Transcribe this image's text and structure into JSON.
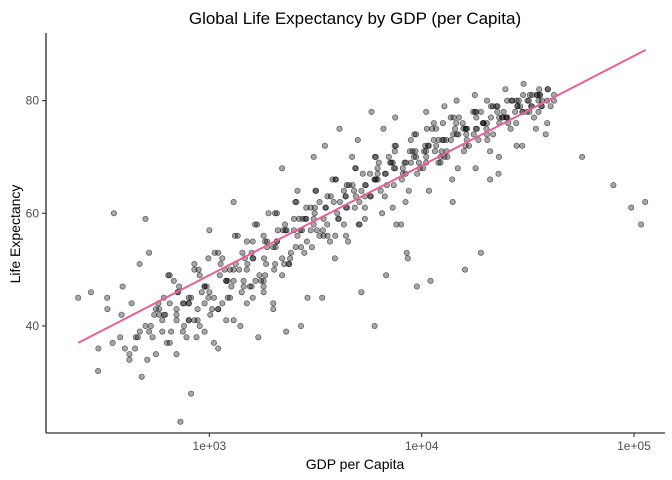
{
  "chart_data": {
    "type": "scatter",
    "title": "Global Life Expectancy by GDP (per Capita)",
    "xlabel": "GDP per Capita",
    "ylabel": "Life Expectancy",
    "x_scale": "log10",
    "xlim": [
      170,
      140000
    ],
    "ylim": [
      21,
      92
    ],
    "x_ticks": [
      1000,
      10000,
      100000
    ],
    "x_tick_labels": [
      "1e+03",
      "1e+04",
      "1e+05"
    ],
    "y_ticks": [
      40,
      60,
      80
    ],
    "y_tick_labels": [
      "40",
      "60",
      "80"
    ],
    "grid": false,
    "legend": "none",
    "colors": {
      "points_fill": "#000000",
      "points_opacity": 0.35,
      "trend_line": "#e8609a"
    },
    "trend_line": {
      "type": "linear on log10(x)",
      "x": [
        241,
        113523
      ],
      "y": [
        37.0,
        89.0
      ]
    },
    "series": [
      {
        "x": [
          241,
          277,
          299,
          331,
          355,
          386,
          420,
          447,
          469,
          500,
          540,
          575,
          620,
          650,
          700,
          730,
          760,
          820,
          870,
          880,
          990,
          1000,
          1100,
          1200,
          1250,
          1300,
          1400,
          1500,
          1600,
          1700,
          1800,
          1900,
          2000,
          2100,
          2200,
          2400,
          2600,
          2750,
          2900,
          3100,
          3300,
          3500,
          3800,
          4100,
          4400,
          4700,
          5000,
          5400,
          5800,
          6200,
          6600,
          7000,
          7500,
          8000,
          8600,
          9200,
          9800,
          10500,
          11200,
          12000,
          12800,
          13700,
          14600,
          15600,
          16700,
          17800,
          19000,
          20300,
          21700,
          23200,
          24800,
          26500,
          28300,
          30200,
          32300,
          34500,
          36800,
          39300,
          42000,
          57000,
          80000,
          97000,
          108000,
          113000,
          39000,
          36000,
          33000,
          28000,
          23000,
          21000,
          19000,
          18000,
          16000,
          14000,
          12000,
          11000,
          9500,
          8500,
          7600,
          6800,
          6000,
          5200,
          4500,
          3900,
          3400,
          3000,
          2700,
          2300,
          2000,
          1750,
          1500,
          1300,
          1150,
          1050,
          950,
          850,
          780,
          710,
          640,
          580,
          520,
          470,
          430,
          390,
          350,
          330,
          1650,
          2050,
          2500,
          3000,
          3600,
          4300,
          5100,
          6100,
          7300,
          8700,
          10400,
          12400,
          14800,
          17600,
          21000,
          25000,
          29800,
          35500,
          1200,
          1500,
          1800,
          2200,
          2700,
          3300,
          4000,
          4900,
          6000,
          7300,
          8900,
          10800,
          13200,
          16100,
          19600,
          23900,
          29100,
          35500,
          800,
          950,
          1100,
          1300,
          1550,
          1850,
          2200,
          2600,
          3100,
          3700,
          4400,
          5200,
          6200,
          7400,
          8800,
          10500,
          12500,
          14900,
          600,
          700,
          800,
          900,
          1000,
          1150,
          1300,
          1450,
          1600,
          1800,
          2000,
          2250,
          2500,
          2800,
          3100,
          3450,
          3850,
          4300,
          4800,
          5400,
          6000,
          6700,
          7500,
          8400,
          9400,
          10500,
          11700,
          13100,
          14600,
          16300,
          18200,
          20300,
          22700,
          25300,
          28200,
          31500,
          35100,
          39200,
          400,
          460,
          530,
          610,
          700,
          800,
          920,
          1050,
          1200,
          1380,
          1580,
          1810,
          2080,
          2380,
          2730,
          3130,
          3590,
          4120,
          4720,
          5410,
          6200,
          7110,
          8150,
          9340,
          10710,
          12280,
          14080,
          16140,
          18500,
          21210,
          24320,
          27880,
          31960,
          36640,
          42000,
          500,
          560,
          630,
          710,
          800,
          900,
          1010,
          1130,
          1270,
          1430,
          1600,
          1800,
          2020,
          2270,
          2550,
          2860,
          3210,
          3600,
          4040,
          4540,
          5090,
          5710,
          6410,
          7190,
          8070,
          9060,
          10160,
          11400,
          12800,
          14360,
          16110,
          18080,
          20290,
          22770,
          25550,
          28670,
          32170,
          36100,
          40500,
          650,
          720,
          800,
          890,
          990,
          1100,
          1220,
          1360,
          1510,
          1680,
          1870,
          2080,
          2310,
          2570,
          2860,
          3180,
          3540,
          3940,
          4380,
          4870,
          5420,
          6030,
          6710,
          7460,
          8300,
          9230,
          10270,
          11420,
          12700,
          14130,
          15720,
          17490,
          19460,
          21650,
          24080,
          26790,
          29800,
          33150,
          36880,
          450,
          510,
          580,
          660,
          750,
          850,
          970,
          1100,
          1250,
          1420,
          1610,
          1830,
          2080,
          2360,
          2680,
          3040,
          3450,
          3920,
          4450,
          5050,
          5730,
          6510,
          7390,
          8390,
          9520,
          10810,
          12270,
          13930,
          15810,
          17950,
          20370,
          23120,
          26240,
          29780,
          33800,
          38370,
          550,
          610,
          680,
          760,
          850,
          950,
          1060,
          1180,
          1320,
          1470,
          1640,
          1830,
          2040,
          2280,
          2540,
          2830,
          3160,
          3520,
          3930,
          4380,
          4890,
          5450,
          6080,
          6780,
          7560,
          8430,
          9400,
          10480,
          11690,
          13040,
          14540,
          16220,
          18090,
          20170,
          22500,
          25090,
          27980,
          31210,
          34810,
          300,
          380,
          420,
          480,
          520,
          560,
          600,
          650,
          700,
          750,
          820,
          880,
          950,
          1030,
          1120,
          1220,
          1330,
          1450,
          1580,
          1720,
          1870,
          2040,
          2220,
          2420,
          2640,
          2880,
          3140,
          3420,
          3730,
          4070,
          4440,
          4840,
          5280,
          5760,
          6280,
          6850,
          7470,
          8150,
          8890,
          9700,
          10580,
          11540,
          12590,
          13730,
          14980,
          16340,
          17830,
          19450,
          21220,
          23150,
          25250,
          27550,
          30050,
          32780,
          35760,
          39010
        ],
        "y": [
          45,
          46,
          32,
          43,
          60,
          42,
          35,
          36,
          51,
          59,
          38,
          44,
          42,
          49,
          35,
          23,
          40,
          28,
          38,
          43,
          52,
          57,
          36,
          48,
          45,
          62,
          40,
          50,
          55,
          38,
          48,
          60,
          44,
          57,
          68,
          52,
          64,
          59,
          45,
          70,
          62,
          72,
          66,
          75,
          56,
          70,
          73,
          59,
          78,
          68,
          75,
          70,
          77,
          58,
          52,
          70,
          68,
          78,
          75,
          73,
          79,
          77,
          80,
          76,
          72,
          81,
          78,
          80,
          74,
          76,
          82,
          80,
          79,
          83,
          81,
          75,
          79,
          82,
          80,
          70,
          65,
          61,
          58,
          62,
          76,
          81,
          79,
          72,
          67,
          66,
          53,
          75,
          50,
          62,
          69,
          48,
          47,
          53,
          58,
          49,
          40,
          46,
          55,
          52,
          45,
          57,
          40,
          39,
          43,
          48,
          55,
          41,
          52,
          37,
          44,
          50,
          38,
          46,
          49,
          43,
          53,
          39,
          44,
          47,
          37,
          45,
          48,
          54,
          59,
          61,
          56,
          64,
          58,
          66,
          69,
          64,
          72,
          71,
          68,
          74,
          71,
          77,
          78,
          80,
          41,
          44,
          46,
          52,
          54,
          56,
          60,
          63,
          66,
          61,
          69,
          72,
          70,
          75,
          76,
          77,
          79,
          78,
          41,
          39,
          43,
          48,
          47,
          51,
          49,
          56,
          58,
          55,
          61,
          64,
          66,
          68,
          71,
          70,
          73,
          74,
          39,
          42,
          45,
          40,
          46,
          44,
          50,
          48,
          52,
          47,
          54,
          51,
          57,
          53,
          59,
          56,
          62,
          58,
          64,
          61,
          66,
          63,
          68,
          67,
          70,
          69,
          72,
          71,
          74,
          73,
          75,
          76,
          78,
          77,
          79,
          80,
          81,
          82,
          36,
          38,
          40,
          42,
          41,
          44,
          46,
          45,
          48,
          50,
          47,
          52,
          55,
          51,
          57,
          60,
          58,
          62,
          65,
          63,
          67,
          69,
          68,
          71,
          72,
          70,
          74,
          75,
          73,
          77,
          78,
          76,
          80,
          79,
          81,
          40,
          43,
          37,
          46,
          44,
          49,
          42,
          51,
          47,
          53,
          45,
          56,
          50,
          58,
          54,
          61,
          57,
          63,
          59,
          65,
          62,
          67,
          64,
          69,
          66,
          71,
          68,
          73,
          70,
          75,
          72,
          77,
          74,
          79,
          76,
          80,
          78,
          81,
          79,
          44,
          47,
          41,
          50,
          45,
          53,
          48,
          56,
          51,
          58,
          54,
          60,
          57,
          62,
          59,
          64,
          61,
          66,
          63,
          68,
          65,
          70,
          67,
          72,
          69,
          74,
          71,
          76,
          73,
          77,
          75,
          78,
          76,
          79,
          77,
          80,
          78,
          81,
          80,
          38,
          34,
          42,
          39,
          44,
          41,
          47,
          43,
          50,
          46,
          52,
          49,
          55,
          51,
          57,
          54,
          59,
          56,
          61,
          58,
          63,
          60,
          65,
          62,
          67,
          64,
          69,
          66,
          71,
          68,
          73,
          70,
          75,
          72,
          77,
          74,
          42,
          45,
          48,
          44,
          51,
          47,
          53,
          50,
          56,
          52,
          58,
          55,
          60,
          57,
          62,
          59,
          64,
          61,
          66,
          63,
          68,
          65,
          70,
          67,
          72,
          69,
          74,
          71,
          75,
          73,
          76,
          74,
          78,
          75,
          79,
          77,
          80,
          78,
          81,
          36,
          38,
          34,
          31,
          39,
          35,
          41,
          37,
          43,
          39,
          45,
          41,
          47,
          43,
          49,
          45,
          51,
          47,
          53,
          49,
          55,
          51,
          57,
          53,
          59,
          55,
          61,
          57,
          63,
          59,
          65,
          61,
          67,
          63,
          69,
          65,
          71,
          67,
          73,
          69,
          75,
          71,
          76,
          73,
          77,
          75,
          78,
          76,
          79,
          77,
          80,
          78,
          81,
          79,
          82,
          80
        ]
      }
    ]
  }
}
